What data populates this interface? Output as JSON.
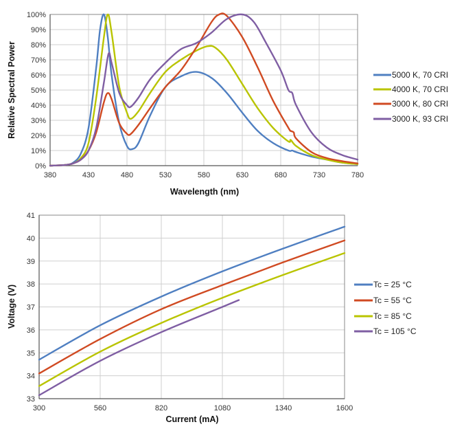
{
  "chart_data": [
    {
      "type": "line",
      "xlabel": "Wavelength (nm)",
      "ylabel": "Relative Spectral Power",
      "xlim": [
        380,
        780
      ],
      "ylim": [
        0,
        100
      ],
      "x_ticks": [
        380,
        430,
        480,
        530,
        580,
        630,
        680,
        730,
        780
      ],
      "y_ticks": [
        "0%",
        "10%",
        "20%",
        "30%",
        "40%",
        "50%",
        "60%",
        "70%",
        "80%",
        "90%",
        "100%"
      ],
      "grid": true,
      "legend_position": "right",
      "series": [
        {
          "name": "5000 K, 70 CRI",
          "color": "#4f7fc1",
          "x": [
            380,
            400,
            410,
            420,
            430,
            440,
            445,
            450,
            455,
            460,
            470,
            480,
            487,
            495,
            510,
            530,
            550,
            570,
            590,
            610,
            630,
            650,
            670,
            690,
            695,
            700,
            720,
            740,
            760,
            780
          ],
          "y": [
            0,
            0.5,
            2,
            8,
            25,
            65,
            90,
            100,
            85,
            60,
            28,
            13,
            11,
            15,
            33,
            52,
            59,
            62,
            58,
            48,
            35,
            23,
            15,
            10,
            10,
            9,
            6,
            4,
            2,
            1
          ]
        },
        {
          "name": "4000 K, 70 CRI",
          "color": "#b9c400",
          "x": [
            380,
            400,
            410,
            420,
            430,
            440,
            450,
            455,
            460,
            470,
            480,
            485,
            495,
            510,
            530,
            550,
            570,
            585,
            595,
            610,
            630,
            650,
            670,
            690,
            693,
            700,
            720,
            740,
            760,
            780
          ],
          "y": [
            0,
            0.5,
            1.5,
            5,
            15,
            45,
            85,
            100,
            88,
            52,
            35,
            31,
            36,
            48,
            62,
            70,
            76,
            79,
            78,
            70,
            54,
            38,
            25,
            16,
            17,
            13,
            7,
            4,
            2,
            1
          ]
        },
        {
          "name": "3000 K, 80 CRI",
          "color": "#d04a22",
          "x": [
            380,
            400,
            410,
            420,
            430,
            440,
            450,
            455,
            460,
            470,
            480,
            485,
            495,
            510,
            530,
            550,
            570,
            590,
            600,
            610,
            630,
            650,
            670,
            690,
            693,
            697,
            700,
            720,
            740,
            760,
            780
          ],
          "y": [
            0,
            0.5,
            1.5,
            4,
            10,
            22,
            42,
            48,
            44,
            28,
            21,
            21,
            27,
            38,
            52,
            63,
            78,
            95,
            100,
            99,
            85,
            65,
            43,
            25,
            23,
            22,
            18,
            9,
            5,
            3,
            1.5
          ]
        },
        {
          "name": "3000 K, 93 CRI",
          "color": "#7f5ea3",
          "x": [
            380,
            400,
            410,
            420,
            430,
            440,
            450,
            456,
            460,
            470,
            480,
            485,
            495,
            510,
            530,
            550,
            570,
            590,
            610,
            630,
            645,
            660,
            680,
            690,
            695,
            700,
            720,
            740,
            760,
            780
          ],
          "y": [
            0,
            0.5,
            1.5,
            4,
            10,
            25,
            55,
            74,
            68,
            48,
            40,
            39,
            45,
            57,
            68,
            77,
            81,
            88,
            97,
            100,
            95,
            82,
            63,
            50,
            48,
            40,
            22,
            12,
            7,
            4
          ]
        }
      ]
    },
    {
      "type": "line",
      "xlabel": "Current (mA)",
      "ylabel": "Voltage (V)",
      "xlim": [
        300,
        1600
      ],
      "ylim": [
        33,
        41
      ],
      "x_ticks": [
        300,
        560,
        820,
        1080,
        1340,
        1600
      ],
      "y_ticks": [
        33,
        34,
        35,
        36,
        37,
        38,
        39,
        40,
        41
      ],
      "grid": true,
      "legend_position": "right",
      "series": [
        {
          "name": "Tc = 25 °C",
          "color": "#4f7fc1",
          "x": [
            300,
            560,
            820,
            1080,
            1340,
            1600
          ],
          "y": [
            34.7,
            36.2,
            37.45,
            38.55,
            39.55,
            40.5
          ]
        },
        {
          "name": "Tc = 55 °C",
          "color": "#d04a22",
          "x": [
            300,
            560,
            820,
            1080,
            1340,
            1600
          ],
          "y": [
            34.1,
            35.6,
            36.9,
            37.95,
            38.95,
            39.9
          ]
        },
        {
          "name": "Tc = 85 °C",
          "color": "#b9c400",
          "x": [
            300,
            560,
            820,
            1080,
            1340,
            1600
          ],
          "y": [
            33.55,
            35.05,
            36.3,
            37.4,
            38.4,
            39.35
          ]
        },
        {
          "name": "Tc = 105 °C",
          "color": "#7f5ea3",
          "x": [
            300,
            560,
            820,
            1080,
            1150
          ],
          "y": [
            33.15,
            34.65,
            35.9,
            37.0,
            37.3
          ]
        }
      ]
    }
  ]
}
